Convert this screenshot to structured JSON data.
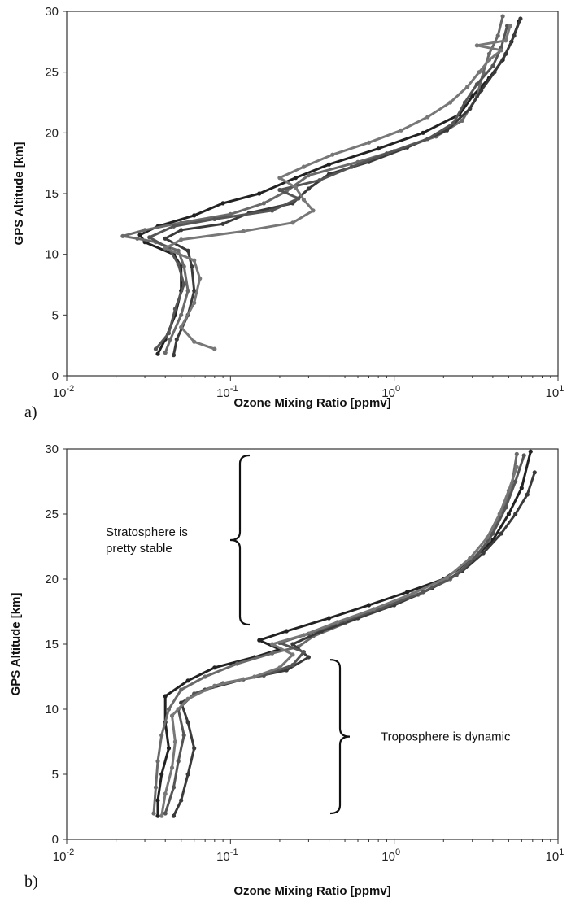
{
  "chart_data": [
    {
      "type": "line",
      "panel_label": "a)",
      "xlabel": "Ozone Mixing Ratio [ppmv]",
      "ylabel": "GPS Altitude [km]",
      "x_scale": "log",
      "xlim": [
        0.01,
        10
      ],
      "ylim": [
        0,
        30
      ],
      "x_ticks": [
        {
          "base": "10",
          "exp": "-2"
        },
        {
          "base": "10",
          "exp": "-1"
        },
        {
          "base": "10",
          "exp": "0"
        },
        {
          "base": "10",
          "exp": "1"
        }
      ],
      "y_ticks": [
        "0",
        "5",
        "10",
        "15",
        "20",
        "25",
        "30"
      ],
      "grid": false,
      "colors": [
        "#222222",
        "#6a6a6a",
        "#3a3a3a",
        "#555555"
      ],
      "series": [
        {
          "color": "#222222",
          "points": [
            [
              0.036,
              1.8
            ],
            [
              0.04,
              3
            ],
            [
              0.046,
              5
            ],
            [
              0.05,
              7
            ],
            [
              0.05,
              9
            ],
            [
              0.045,
              10
            ],
            [
              0.03,
              11
            ],
            [
              0.028,
              11.6
            ],
            [
              0.036,
              12.3
            ],
            [
              0.06,
              13.2
            ],
            [
              0.09,
              14.2
            ],
            [
              0.15,
              15
            ],
            [
              0.25,
              16.3
            ],
            [
              0.4,
              17.4
            ],
            [
              0.8,
              18.7
            ],
            [
              1.5,
              20
            ],
            [
              2.5,
              21.5
            ],
            [
              3.0,
              23
            ],
            [
              3.8,
              24.5
            ],
            [
              4.6,
              26
            ],
            [
              5.2,
              27.5
            ],
            [
              5.8,
              29.2
            ]
          ]
        },
        {
          "color": "#6a6a6a",
          "points": [
            [
              0.04,
              1.9
            ],
            [
              0.043,
              3
            ],
            [
              0.05,
              5
            ],
            [
              0.055,
              7
            ],
            [
              0.052,
              9
            ],
            [
              0.048,
              10.3
            ],
            [
              0.035,
              11
            ],
            [
              0.027,
              11.3
            ],
            [
              0.022,
              11.5
            ],
            [
              0.03,
              12
            ],
            [
              0.05,
              12.6
            ],
            [
              0.1,
              13.3
            ],
            [
              0.16,
              14.2
            ],
            [
              0.22,
              15.2
            ],
            [
              0.3,
              16.5
            ],
            [
              0.6,
              17.6
            ],
            [
              1.0,
              18.5
            ],
            [
              1.8,
              19.7
            ],
            [
              2.6,
              21
            ],
            [
              3.2,
              23
            ],
            [
              3.5,
              25
            ],
            [
              3.8,
              26.5
            ],
            [
              4.3,
              28
            ],
            [
              4.6,
              29.6
            ]
          ]
        },
        {
          "color": "#3a3a3a",
          "points": [
            [
              0.045,
              1.7
            ],
            [
              0.047,
              3
            ],
            [
              0.055,
              5
            ],
            [
              0.06,
              7
            ],
            [
              0.058,
              9
            ],
            [
              0.055,
              10.3
            ],
            [
              0.04,
              11.3
            ],
            [
              0.05,
              12
            ],
            [
              0.09,
              12.5
            ],
            [
              0.13,
              13.4
            ],
            [
              0.24,
              14.2
            ],
            [
              0.3,
              15.4
            ],
            [
              0.4,
              16.6
            ],
            [
              0.7,
              17.6
            ],
            [
              1.2,
              18.8
            ],
            [
              2.1,
              20.2
            ],
            [
              2.9,
              22
            ],
            [
              3.4,
              23.5
            ],
            [
              4.1,
              25
            ],
            [
              4.8,
              26.5
            ],
            [
              5.4,
              28
            ],
            [
              5.9,
              29.4
            ]
          ]
        },
        {
          "color": "#555555",
          "points": [
            [
              0.035,
              2.2
            ],
            [
              0.042,
              3.5
            ],
            [
              0.046,
              5.5
            ],
            [
              0.052,
              7.5
            ],
            [
              0.048,
              9.2
            ],
            [
              0.042,
              10.5
            ],
            [
              0.032,
              11.4
            ],
            [
              0.045,
              12.3
            ],
            [
              0.08,
              12.9
            ],
            [
              0.18,
              13.6
            ],
            [
              0.26,
              14.6
            ],
            [
              0.2,
              15.3
            ],
            [
              0.35,
              16.1
            ],
            [
              0.55,
              17.2
            ],
            [
              0.9,
              18.3
            ],
            [
              1.6,
              19.5
            ],
            [
              2.3,
              20.8
            ],
            [
              2.7,
              22.5
            ],
            [
              3.2,
              24
            ],
            [
              4.0,
              25.5
            ],
            [
              4.5,
              27
            ],
            [
              4.9,
              28.8
            ]
          ]
        },
        {
          "color": "#777777",
          "points": [
            [
              0.08,
              2.2
            ],
            [
              0.06,
              2.8
            ],
            [
              0.05,
              4
            ],
            [
              0.06,
              6
            ],
            [
              0.065,
              8
            ],
            [
              0.06,
              9.5
            ],
            [
              0.04,
              10.5
            ],
            [
              0.05,
              11.2
            ],
            [
              0.12,
              11.9
            ],
            [
              0.24,
              12.6
            ],
            [
              0.32,
              13.6
            ],
            [
              0.28,
              14.5
            ],
            [
              0.25,
              15.5
            ],
            [
              0.2,
              16.3
            ],
            [
              0.28,
              17.2
            ],
            [
              0.42,
              18.2
            ],
            [
              0.7,
              19.2
            ],
            [
              1.1,
              20.2
            ],
            [
              1.6,
              21.3
            ],
            [
              2.2,
              22.5
            ],
            [
              2.8,
              23.8
            ],
            [
              3.3,
              25
            ],
            [
              3.8,
              26
            ],
            [
              4.5,
              26.8
            ],
            [
              3.2,
              27.2
            ],
            [
              4.8,
              27.6
            ],
            [
              5.1,
              28.8
            ]
          ]
        }
      ],
      "annotations": []
    },
    {
      "type": "line",
      "panel_label": "b)",
      "xlabel": "Ozone Mixing Ratio [ppmv]",
      "ylabel": "GPS Altitude [km]",
      "x_scale": "log",
      "xlim": [
        0.01,
        10
      ],
      "ylim": [
        0,
        30
      ],
      "x_ticks": [
        {
          "base": "10",
          "exp": "-2"
        },
        {
          "base": "10",
          "exp": "-1"
        },
        {
          "base": "10",
          "exp": "0"
        },
        {
          "base": "10",
          "exp": "1"
        }
      ],
      "y_ticks": [
        "0",
        "5",
        "10",
        "15",
        "20",
        "25",
        "30"
      ],
      "grid": false,
      "colors": [
        "#222222",
        "#6a6a6a",
        "#3a3a3a",
        "#555555"
      ],
      "series": [
        {
          "color": "#222222",
          "points": [
            [
              0.036,
              1.8
            ],
            [
              0.036,
              3
            ],
            [
              0.038,
              5
            ],
            [
              0.042,
              7
            ],
            [
              0.04,
              9
            ],
            [
              0.04,
              11
            ],
            [
              0.055,
              12.2
            ],
            [
              0.08,
              13.2
            ],
            [
              0.14,
              14
            ],
            [
              0.2,
              14.6
            ],
            [
              0.15,
              15.3
            ],
            [
              0.22,
              16
            ],
            [
              0.4,
              17
            ],
            [
              0.7,
              18
            ],
            [
              1.2,
              19
            ],
            [
              2.0,
              20
            ],
            [
              3.0,
              21.5
            ],
            [
              4.0,
              23
            ],
            [
              5.0,
              25
            ],
            [
              6.0,
              27
            ],
            [
              6.8,
              29.8
            ]
          ]
        },
        {
          "color": "#6a6a6a",
          "points": [
            [
              0.034,
              2
            ],
            [
              0.035,
              4
            ],
            [
              0.036,
              6
            ],
            [
              0.038,
              8
            ],
            [
              0.042,
              10
            ],
            [
              0.05,
              11.5
            ],
            [
              0.07,
              12.5
            ],
            [
              0.11,
              13.5
            ],
            [
              0.18,
              14.3
            ],
            [
              0.26,
              14.8
            ],
            [
              0.32,
              15.6
            ],
            [
              0.5,
              16.6
            ],
            [
              0.8,
              17.6
            ],
            [
              1.4,
              18.8
            ],
            [
              2.2,
              20
            ],
            [
              3.0,
              21.5
            ],
            [
              3.8,
              23
            ],
            [
              4.5,
              25
            ],
            [
              5.2,
              27
            ],
            [
              5.6,
              29.6
            ]
          ]
        },
        {
          "color": "#3a3a3a",
          "points": [
            [
              0.045,
              1.8
            ],
            [
              0.05,
              3
            ],
            [
              0.055,
              5
            ],
            [
              0.06,
              7
            ],
            [
              0.055,
              9
            ],
            [
              0.05,
              10.5
            ],
            [
              0.07,
              11.5
            ],
            [
              0.12,
              12.3
            ],
            [
              0.22,
              13
            ],
            [
              0.3,
              14
            ],
            [
              0.24,
              15
            ],
            [
              0.36,
              16
            ],
            [
              0.6,
              17
            ],
            [
              1.0,
              18
            ],
            [
              1.7,
              19.3
            ],
            [
              2.6,
              20.6
            ],
            [
              3.5,
              22
            ],
            [
              4.5,
              23.5
            ],
            [
              5.5,
              25
            ],
            [
              6.5,
              26.5
            ],
            [
              7.2,
              28.2
            ]
          ]
        },
        {
          "color": "#555555",
          "points": [
            [
              0.04,
              2
            ],
            [
              0.045,
              4
            ],
            [
              0.048,
              6
            ],
            [
              0.052,
              8
            ],
            [
              0.048,
              10
            ],
            [
              0.06,
              11.2
            ],
            [
              0.09,
              12
            ],
            [
              0.16,
              12.6
            ],
            [
              0.24,
              13.4
            ],
            [
              0.28,
              14.4
            ],
            [
              0.2,
              15.1
            ],
            [
              0.3,
              15.8
            ],
            [
              0.5,
              16.8
            ],
            [
              0.85,
              17.8
            ],
            [
              1.5,
              19
            ],
            [
              2.4,
              20.3
            ],
            [
              3.2,
              21.8
            ],
            [
              4.0,
              23.5
            ],
            [
              4.8,
              25.5
            ],
            [
              5.5,
              27.5
            ],
            [
              6.2,
              29.5
            ]
          ]
        },
        {
          "color": "#777777",
          "points": [
            [
              0.038,
              1.8
            ],
            [
              0.04,
              3.5
            ],
            [
              0.044,
              5.5
            ],
            [
              0.046,
              7.5
            ],
            [
              0.044,
              9.5
            ],
            [
              0.055,
              10.8
            ],
            [
              0.08,
              11.8
            ],
            [
              0.14,
              12.5
            ],
            [
              0.2,
              13.2
            ],
            [
              0.24,
              14.2
            ],
            [
              0.18,
              15
            ],
            [
              0.28,
              15.7
            ],
            [
              0.45,
              16.7
            ],
            [
              0.75,
              17.7
            ],
            [
              1.3,
              18.9
            ],
            [
              2.1,
              20.1
            ],
            [
              2.9,
              21.6
            ],
            [
              3.7,
              23.2
            ],
            [
              4.4,
              25
            ],
            [
              5.0,
              26.8
            ],
            [
              5.6,
              28.6
            ]
          ]
        }
      ],
      "annotations": [
        {
          "text_lines": [
            "Stratosphere is",
            "pretty stable"
          ],
          "bracket_alt_range": [
            16.5,
            29.5
          ],
          "bracket_side": "left"
        },
        {
          "text_lines": [
            "Troposphere is dynamic"
          ],
          "bracket_alt_range": [
            2,
            13.8
          ],
          "bracket_side": "right"
        }
      ]
    }
  ]
}
